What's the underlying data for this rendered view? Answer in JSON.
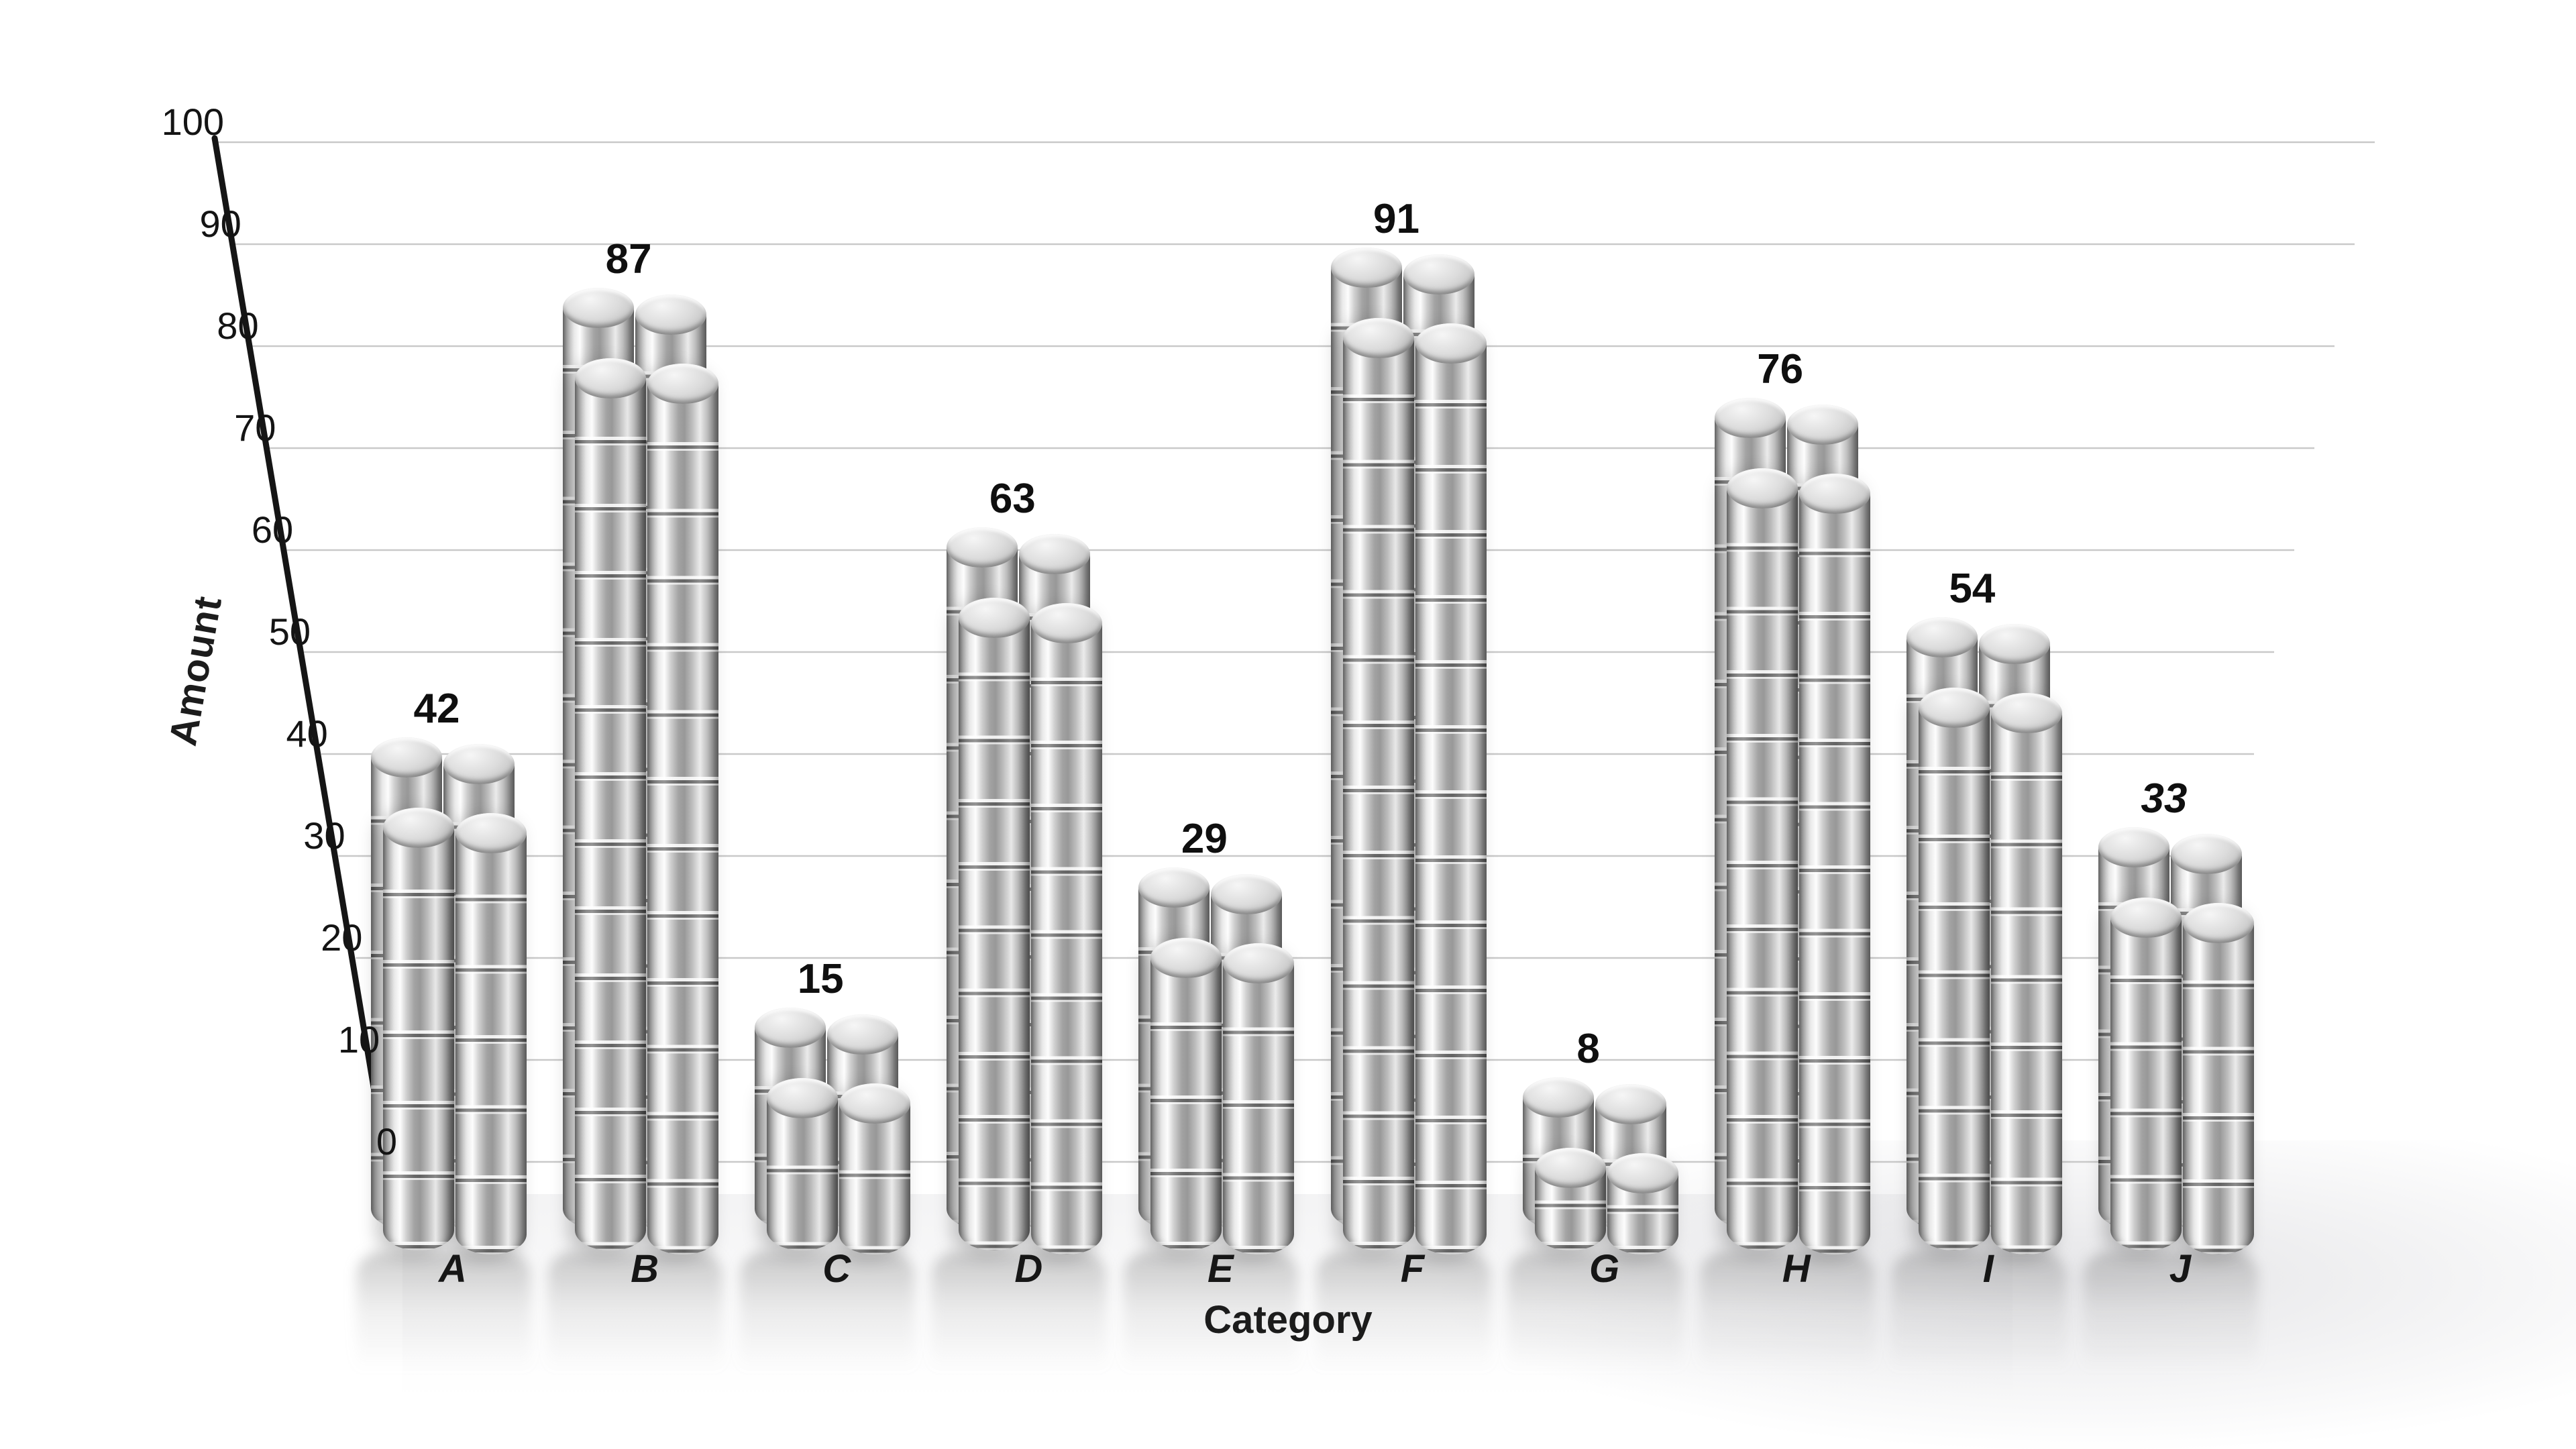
{
  "chart_data": {
    "type": "bar",
    "title": "",
    "categories": [
      "A",
      "B",
      "C",
      "D",
      "E",
      "F",
      "G",
      "H",
      "I",
      "J"
    ],
    "values": [
      42,
      87,
      15,
      63,
      29,
      91,
      8,
      76,
      54,
      33
    ],
    "value_labels": [
      "42",
      "87",
      "15",
      "63",
      "29",
      "91",
      "8",
      "76",
      "54",
      "33"
    ],
    "value_label_italic": [
      false,
      false,
      false,
      false,
      false,
      false,
      false,
      false,
      false,
      true
    ],
    "xlabel": "Category",
    "ylabel": "Amount",
    "ylim": [
      0,
      100
    ],
    "yticks": [
      0,
      10,
      20,
      30,
      40,
      50,
      60,
      70,
      80,
      90,
      100
    ],
    "grid": "horizontal-light",
    "legend": "none",
    "bar_style": "3d-perspective metallic coin stacks, four cylinder stacks (2x2) per category"
  },
  "colors": {
    "background": "#ffffff",
    "gridline": "#c9c9c9",
    "axis_line": "#151515",
    "text": "#141414",
    "metal_highlight": "#fdfdfd",
    "metal_mid": "#b5b5b5",
    "metal_shadow": "#787878"
  }
}
